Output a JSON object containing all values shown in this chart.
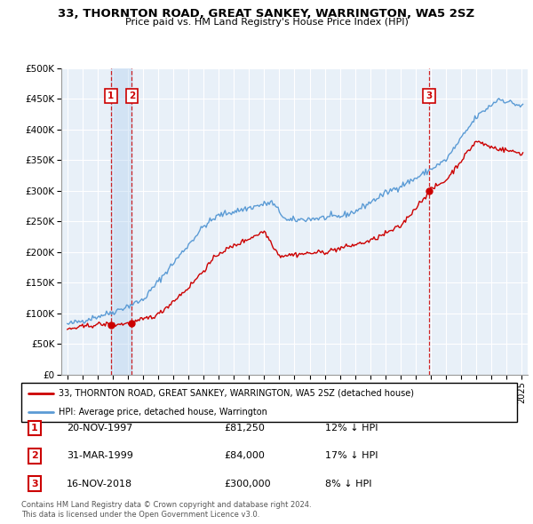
{
  "title": "33, THORNTON ROAD, GREAT SANKEY, WARRINGTON, WA5 2SZ",
  "subtitle": "Price paid vs. HM Land Registry's House Price Index (HPI)",
  "legend_line1": "33, THORNTON ROAD, GREAT SANKEY, WARRINGTON, WA5 2SZ (detached house)",
  "legend_line2": "HPI: Average price, detached house, Warrington",
  "footnote1": "Contains HM Land Registry data © Crown copyright and database right 2024.",
  "footnote2": "This data is licensed under the Open Government Licence v3.0.",
  "table": [
    {
      "num": "1",
      "date": "20-NOV-1997",
      "price": "£81,250",
      "hpi": "12% ↓ HPI"
    },
    {
      "num": "2",
      "date": "31-MAR-1999",
      "price": "£84,000",
      "hpi": "17% ↓ HPI"
    },
    {
      "num": "3",
      "date": "16-NOV-2018",
      "price": "£300,000",
      "hpi": "8% ↓ HPI"
    }
  ],
  "sale_dates": [
    1997.88,
    1999.25,
    2018.88
  ],
  "sale_prices": [
    81250,
    84000,
    300000
  ],
  "sale_labels": [
    "1",
    "2",
    "3"
  ],
  "hpi_color": "#5b9bd5",
  "price_color": "#cc0000",
  "plot_bg": "#e8f0f8",
  "ylim": [
    0,
    500000
  ],
  "yticks": [
    0,
    50000,
    100000,
    150000,
    200000,
    250000,
    300000,
    350000,
    400000,
    450000,
    500000
  ],
  "xlim_start": 1994.6,
  "xlim_end": 2025.4
}
